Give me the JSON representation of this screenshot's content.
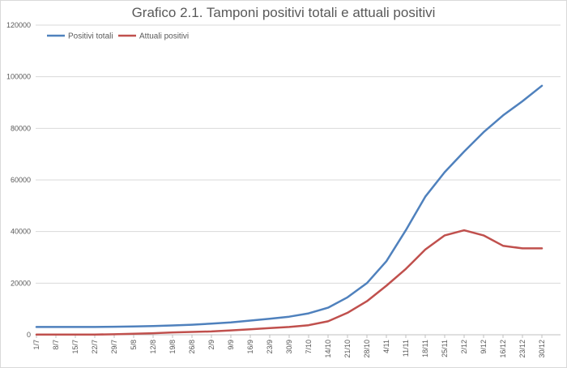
{
  "chart_data": {
    "type": "line",
    "title": "Grafico 2.1. Tamponi positivi totali e attuali positivi",
    "xlabel": "",
    "ylabel": "",
    "ylim": [
      0,
      120000
    ],
    "y_ticks": [
      "0",
      "20000",
      "40000",
      "60000",
      "80000",
      "100000",
      "120000"
    ],
    "categories": [
      "1/7",
      "8/7",
      "15/7",
      "22/7",
      "29/7",
      "5/8",
      "12/8",
      "19/8",
      "26/8",
      "2/9",
      "9/9",
      "16/9",
      "23/9",
      "30/9",
      "7/10",
      "14/10",
      "21/10",
      "28/10",
      "4/11",
      "11/11",
      "18/11",
      "25/11",
      "2/12",
      "9/12",
      "16/12",
      "23/12",
      "30/12"
    ],
    "grid": "horizontal",
    "legend_position": "top-left",
    "series": [
      {
        "name": "Positivi totali",
        "color": "#4f81bd",
        "values": [
          3000,
          3000,
          3000,
          3000,
          3100,
          3200,
          3400,
          3600,
          3900,
          4300,
          4800,
          5500,
          6200,
          7000,
          8300,
          10500,
          14500,
          20000,
          28500,
          40500,
          53500,
          63000,
          71000,
          78500,
          85000,
          90500,
          96500
        ]
      },
      {
        "name": "Attuali positivi",
        "color": "#c0504d",
        "values": [
          50,
          50,
          50,
          100,
          200,
          400,
          600,
          900,
          1100,
          1300,
          1700,
          2100,
          2600,
          3000,
          3700,
          5200,
          8500,
          13000,
          19000,
          25500,
          33000,
          38500,
          40500,
          38500,
          34500,
          33500,
          33500
        ]
      }
    ]
  }
}
